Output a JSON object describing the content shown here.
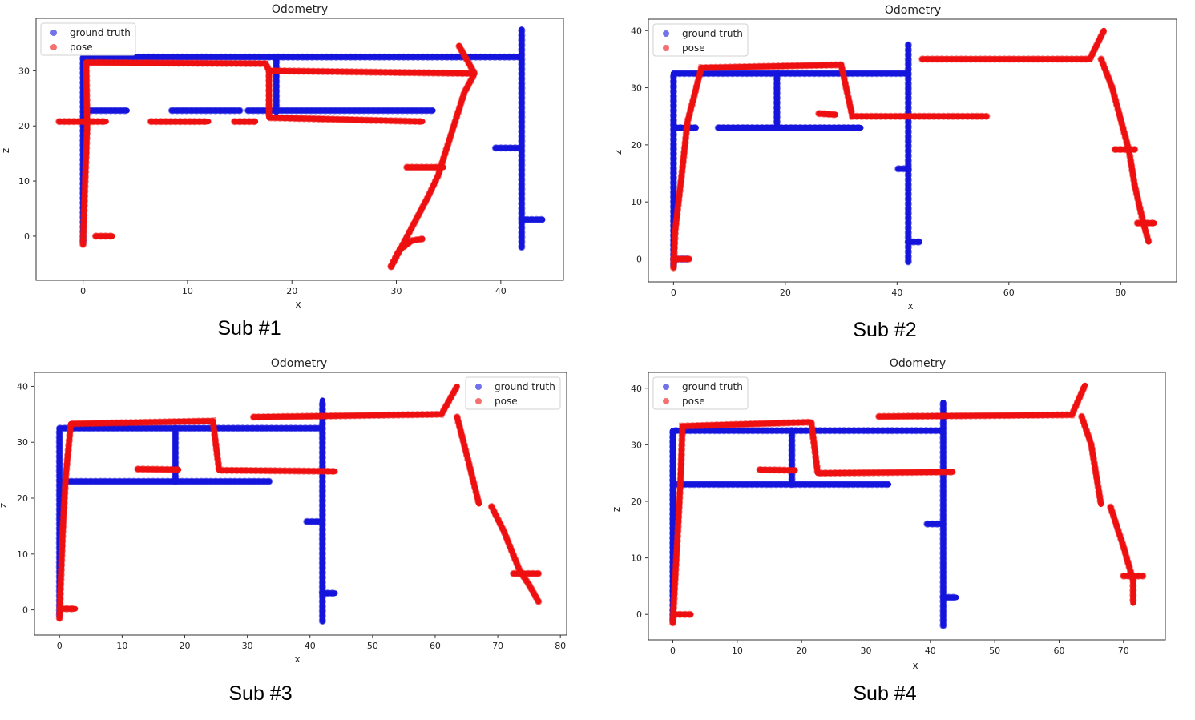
{
  "colors": {
    "ground_truth": "#1414dc",
    "pose": "#ee1111",
    "axes": "#333333"
  },
  "chart_data": [
    {
      "type": "scatter",
      "caption": "Sub #1",
      "title": "Odometry",
      "xlabel": "x",
      "ylabel": "z",
      "xlim": [
        -4.5,
        46
      ],
      "ylim": [
        -8,
        39.5
      ],
      "xticks": [
        0,
        10,
        20,
        30,
        40
      ],
      "yticks": [
        0,
        10,
        20,
        30
      ],
      "legend_position": "top-left",
      "series": [
        {
          "name": "ground truth",
          "color": "#1414dc",
          "segments": [
            [
              [
                0,
                -1
              ],
              [
                0,
                32.5
              ],
              [
                42,
                32.5
              ]
            ],
            [
              [
                42,
                -2
              ],
              [
                42,
                37.5
              ]
            ],
            [
              [
                18.5,
                32.5
              ],
              [
                18.5,
                22.5
              ]
            ],
            [
              [
                0.3,
                22.8
              ],
              [
                4.2,
                22.8
              ]
            ],
            [
              [
                8.5,
                22.8
              ],
              [
                15,
                22.8
              ]
            ],
            [
              [
                15.8,
                22.8
              ],
              [
                33.5,
                22.8
              ]
            ],
            [
              [
                39.5,
                16
              ],
              [
                42,
                16
              ]
            ],
            [
              [
                42,
                3
              ],
              [
                44,
                3
              ]
            ]
          ]
        },
        {
          "name": "pose",
          "color": "#ee1111",
          "segments": [
            [
              [
                0,
                -1.5
              ],
              [
                0.2,
                10
              ],
              [
                0.4,
                20
              ],
              [
                0.3,
                31.5
              ],
              [
                17.5,
                31.3
              ],
              [
                17.8,
                30
              ],
              [
                37.5,
                29.5
              ],
              [
                36,
                34.5
              ]
            ],
            [
              [
                17.8,
                30
              ],
              [
                17.8,
                21.5
              ],
              [
                32.5,
                20.8
              ]
            ],
            [
              [
                -2.3,
                20.8
              ],
              [
                2.2,
                20.8
              ]
            ],
            [
              [
                6.5,
                20.8
              ],
              [
                12,
                20.8
              ]
            ],
            [
              [
                14.5,
                20.8
              ],
              [
                16.5,
                20.8
              ]
            ],
            [
              [
                1.2,
                0
              ],
              [
                2.8,
                0
              ]
            ],
            [
              [
                29.5,
                -5.5
              ],
              [
                30.3,
                -2.5
              ],
              [
                31.5,
                -0.8
              ],
              [
                32.5,
                -0.5
              ]
            ],
            [
              [
                29.5,
                -5.5
              ],
              [
                33,
                7
              ],
              [
                34,
                11
              ],
              [
                36.5,
                26
              ],
              [
                37.5,
                29.5
              ]
            ],
            [
              [
                31,
                12.5
              ],
              [
                34.5,
                12.5
              ]
            ]
          ]
        }
      ]
    },
    {
      "type": "scatter",
      "caption": "Sub #2",
      "title": "Odometry",
      "xlabel": "x",
      "ylabel": "z",
      "xlim": [
        -4.5,
        90
      ],
      "ylim": [
        -4,
        42
      ],
      "xticks": [
        0,
        20,
        40,
        60,
        80
      ],
      "yticks": [
        0,
        10,
        20,
        30,
        40
      ],
      "legend_position": "top-left",
      "series": [
        {
          "name": "ground truth",
          "color": "#1414dc",
          "segments": [
            [
              [
                0,
                -1
              ],
              [
                0,
                32.5
              ],
              [
                42,
                32.5
              ]
            ],
            [
              [
                42,
                -0.5
              ],
              [
                42,
                37.5
              ]
            ],
            [
              [
                18.5,
                32.5
              ],
              [
                18.5,
                23
              ]
            ],
            [
              [
                8,
                23
              ],
              [
                33.5,
                23
              ]
            ],
            [
              [
                0.3,
                23
              ],
              [
                4,
                23
              ]
            ],
            [
              [
                40.2,
                15.8
              ],
              [
                42,
                15.8
              ]
            ],
            [
              [
                42,
                3
              ],
              [
                44,
                3
              ]
            ],
            [
              [
                0.5,
                0
              ],
              [
                2.5,
                0
              ]
            ]
          ]
        },
        {
          "name": "pose",
          "color": "#ee1111",
          "segments": [
            [
              [
                0,
                -1.5
              ],
              [
                0.3,
                5
              ],
              [
                1.5,
                15
              ],
              [
                2.5,
                24
              ],
              [
                5,
                33.5
              ],
              [
                30,
                34
              ],
              [
                32,
                25
              ],
              [
                56,
                25
              ]
            ],
            [
              [
                26,
                25.5
              ],
              [
                29,
                25.3
              ]
            ],
            [
              [
                44.5,
                35
              ],
              [
                74.5,
                35
              ],
              [
                77,
                40
              ]
            ],
            [
              [
                76.5,
                35
              ],
              [
                78.5,
                30
              ],
              [
                81.5,
                19
              ],
              [
                82.5,
                13
              ],
              [
                84,
                6.5
              ],
              [
                85,
                3
              ]
            ],
            [
              [
                79,
                19.2
              ],
              [
                82.5,
                19.2
              ]
            ],
            [
              [
                83,
                6.3
              ],
              [
                86,
                6.3
              ]
            ],
            [
              [
                0,
                0
              ],
              [
                2.8,
                0
              ]
            ]
          ]
        }
      ]
    },
    {
      "type": "scatter",
      "caption": "Sub #3",
      "title": "Odometry",
      "xlabel": "x",
      "ylabel": "z",
      "xlim": [
        -4,
        81
      ],
      "ylim": [
        -4.5,
        42.5
      ],
      "xticks": [
        0,
        10,
        20,
        30,
        40,
        50,
        60,
        70,
        80
      ],
      "yticks": [
        0,
        10,
        20,
        30,
        40
      ],
      "legend_position": "top-right",
      "series": [
        {
          "name": "ground truth",
          "color": "#1414dc",
          "segments": [
            [
              [
                0,
                -1
              ],
              [
                0,
                32.5
              ],
              [
                42,
                32.5
              ]
            ],
            [
              [
                42,
                -2
              ],
              [
                42,
                37.5
              ]
            ],
            [
              [
                18.5,
                32.5
              ],
              [
                18.5,
                23
              ]
            ],
            [
              [
                0.3,
                23
              ],
              [
                33.5,
                23
              ]
            ],
            [
              [
                39.5,
                15.8
              ],
              [
                42,
                15.8
              ]
            ],
            [
              [
                42,
                3
              ],
              [
                44,
                3
              ]
            ]
          ]
        },
        {
          "name": "pose",
          "color": "#ee1111",
          "segments": [
            [
              [
                0,
                -1.5
              ],
              [
                0.2,
                5
              ],
              [
                0.5,
                14
              ],
              [
                1,
                24
              ],
              [
                1.8,
                33.3
              ],
              [
                24.5,
                33.8
              ],
              [
                25.5,
                25
              ],
              [
                44,
                24.8
              ]
            ],
            [
              [
                12.5,
                25.2
              ],
              [
                19,
                25.1
              ]
            ],
            [
              [
                31,
                34.5
              ],
              [
                61,
                35
              ],
              [
                63.5,
                40
              ]
            ],
            [
              [
                63.5,
                34.5
              ],
              [
                65,
                28
              ],
              [
                67,
                19
              ]
            ],
            [
              [
                69,
                18.5
              ],
              [
                71,
                14
              ],
              [
                73.5,
                7
              ],
              [
                75,
                4.5
              ],
              [
                76.5,
                1.5
              ]
            ],
            [
              [
                72.5,
                6.5
              ],
              [
                76.5,
                6.5
              ]
            ],
            [
              [
                0.3,
                0.2
              ],
              [
                2.5,
                0.2
              ]
            ]
          ]
        }
      ]
    },
    {
      "type": "scatter",
      "caption": "Sub #4",
      "title": "Odometry",
      "xlabel": "x",
      "ylabel": "z",
      "xlim": [
        -3.8,
        76.5
      ],
      "ylim": [
        -4.5,
        42.8
      ],
      "xticks": [
        0,
        10,
        20,
        30,
        40,
        50,
        60,
        70
      ],
      "yticks": [
        0,
        10,
        20,
        30,
        40
      ],
      "legend_position": "top-left",
      "series": [
        {
          "name": "ground truth",
          "color": "#1414dc",
          "segments": [
            [
              [
                0,
                -1
              ],
              [
                0,
                32.5
              ],
              [
                42,
                32.5
              ]
            ],
            [
              [
                42,
                -2
              ],
              [
                42,
                37.5
              ]
            ],
            [
              [
                18.5,
                32.5
              ],
              [
                18.5,
                23
              ]
            ],
            [
              [
                0.3,
                23
              ],
              [
                33.5,
                23
              ]
            ],
            [
              [
                39.5,
                16
              ],
              [
                42,
                16
              ]
            ],
            [
              [
                42,
                3
              ],
              [
                44,
                3
              ]
            ]
          ]
        },
        {
          "name": "pose",
          "color": "#ee1111",
          "segments": [
            [
              [
                0,
                -1.5
              ],
              [
                0.3,
                5
              ],
              [
                0.8,
                15
              ],
              [
                1.2,
                24
              ],
              [
                1.5,
                33.3
              ],
              [
                21.5,
                34
              ],
              [
                22.5,
                25
              ],
              [
                43.5,
                25.2
              ]
            ],
            [
              [
                13.5,
                25.6
              ],
              [
                19,
                25.5
              ]
            ],
            [
              [
                32,
                35
              ],
              [
                62,
                35.3
              ],
              [
                64,
                40.5
              ]
            ],
            [
              [
                63.5,
                35
              ],
              [
                65,
                30
              ],
              [
                66.5,
                19.5
              ]
            ],
            [
              [
                68,
                19
              ],
              [
                70,
                12
              ],
              [
                71.5,
                6
              ],
              [
                71.5,
                2
              ]
            ],
            [
              [
                70,
                6.8
              ],
              [
                73,
                6.8
              ]
            ],
            [
              [
                0.3,
                0
              ],
              [
                2.8,
                0
              ]
            ]
          ]
        }
      ]
    }
  ]
}
